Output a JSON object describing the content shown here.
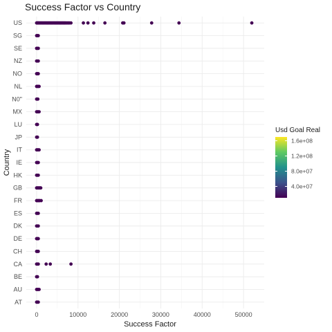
{
  "chart_data": {
    "type": "scatter",
    "title": "Success Factor vs Country",
    "xlabel": "Success Factor",
    "ylabel": "Country",
    "xlim": [
      -2500,
      55000
    ],
    "x_ticks": [
      0,
      10000,
      20000,
      30000,
      40000,
      50000
    ],
    "x_tick_labels": [
      "0",
      "10000",
      "20000",
      "30000",
      "40000",
      "50000"
    ],
    "categories": [
      "AT",
      "AU",
      "BE",
      "CA",
      "CH",
      "DE",
      "DK",
      "ES",
      "FR",
      "GB",
      "HK",
      "IE",
      "IT",
      "JP",
      "LU",
      "MX",
      "N0\"",
      "NL",
      "NO",
      "NZ",
      "SE",
      "SG",
      "US"
    ],
    "grid": true,
    "legend": {
      "title": "Usd Goal Real",
      "position": "right",
      "labels": [
        "1.6e+08",
        "1.2e+08",
        "8.0e+07",
        "4.0e+07"
      ],
      "colors": [
        "#fde725",
        "#5ec962",
        "#21918c",
        "#3b528b",
        "#440154"
      ]
    },
    "point_color": "#440154",
    "points": [
      {
        "country": "US",
        "x": 0
      },
      {
        "country": "US",
        "x": 150
      },
      {
        "country": "US",
        "x": 300
      },
      {
        "country": "US",
        "x": 450
      },
      {
        "country": "US",
        "x": 600
      },
      {
        "country": "US",
        "x": 800
      },
      {
        "country": "US",
        "x": 1000
      },
      {
        "country": "US",
        "x": 1200
      },
      {
        "country": "US",
        "x": 1400
      },
      {
        "country": "US",
        "x": 1600
      },
      {
        "country": "US",
        "x": 1800
      },
      {
        "country": "US",
        "x": 2000
      },
      {
        "country": "US",
        "x": 2200
      },
      {
        "country": "US",
        "x": 2400
      },
      {
        "country": "US",
        "x": 2600
      },
      {
        "country": "US",
        "x": 2800
      },
      {
        "country": "US",
        "x": 3000
      },
      {
        "country": "US",
        "x": 3200
      },
      {
        "country": "US",
        "x": 3400
      },
      {
        "country": "US",
        "x": 3600
      },
      {
        "country": "US",
        "x": 3800
      },
      {
        "country": "US",
        "x": 4000
      },
      {
        "country": "US",
        "x": 4200
      },
      {
        "country": "US",
        "x": 4400
      },
      {
        "country": "US",
        "x": 4600
      },
      {
        "country": "US",
        "x": 4800
      },
      {
        "country": "US",
        "x": 5000
      },
      {
        "country": "US",
        "x": 5200
      },
      {
        "country": "US",
        "x": 5400
      },
      {
        "country": "US",
        "x": 5600
      },
      {
        "country": "US",
        "x": 5800
      },
      {
        "country": "US",
        "x": 6000
      },
      {
        "country": "US",
        "x": 6200
      },
      {
        "country": "US",
        "x": 6400
      },
      {
        "country": "US",
        "x": 6600
      },
      {
        "country": "US",
        "x": 6800
      },
      {
        "country": "US",
        "x": 7000
      },
      {
        "country": "US",
        "x": 7300
      },
      {
        "country": "US",
        "x": 7600
      },
      {
        "country": "US",
        "x": 7900
      },
      {
        "country": "US",
        "x": 8300
      },
      {
        "country": "US",
        "x": 11300
      },
      {
        "country": "US",
        "x": 12400
      },
      {
        "country": "US",
        "x": 13800
      },
      {
        "country": "US",
        "x": 16500
      },
      {
        "country": "US",
        "x": 20800
      },
      {
        "country": "US",
        "x": 21100
      },
      {
        "country": "US",
        "x": 27800
      },
      {
        "country": "US",
        "x": 34400
      },
      {
        "country": "US",
        "x": 52000
      },
      {
        "country": "SG",
        "x": 0
      },
      {
        "country": "SG",
        "x": 200
      },
      {
        "country": "SG",
        "x": 400
      },
      {
        "country": "SE",
        "x": 0
      },
      {
        "country": "SE",
        "x": 200
      },
      {
        "country": "SE",
        "x": 400
      },
      {
        "country": "NZ",
        "x": 0
      },
      {
        "country": "NZ",
        "x": 200
      },
      {
        "country": "NZ",
        "x": 400
      },
      {
        "country": "NO",
        "x": 0
      },
      {
        "country": "NO",
        "x": 200
      },
      {
        "country": "NO",
        "x": 400
      },
      {
        "country": "NL",
        "x": 0
      },
      {
        "country": "NL",
        "x": 200
      },
      {
        "country": "NL",
        "x": 400
      },
      {
        "country": "NL",
        "x": 600
      },
      {
        "country": "N0\"",
        "x": 0
      },
      {
        "country": "N0\"",
        "x": 150
      },
      {
        "country": "N0\"",
        "x": 300
      },
      {
        "country": "MX",
        "x": 0
      },
      {
        "country": "MX",
        "x": 200
      },
      {
        "country": "MX",
        "x": 400
      },
      {
        "country": "MX",
        "x": 600
      },
      {
        "country": "LU",
        "x": 0
      },
      {
        "country": "LU",
        "x": 200
      },
      {
        "country": "JP",
        "x": 0
      },
      {
        "country": "JP",
        "x": 200
      },
      {
        "country": "IT",
        "x": 0
      },
      {
        "country": "IT",
        "x": 200
      },
      {
        "country": "IT",
        "x": 400
      },
      {
        "country": "IT",
        "x": 600
      },
      {
        "country": "IE",
        "x": 0
      },
      {
        "country": "IE",
        "x": 200
      },
      {
        "country": "IE",
        "x": 400
      },
      {
        "country": "HK",
        "x": 0
      },
      {
        "country": "HK",
        "x": 200
      },
      {
        "country": "HK",
        "x": 400
      },
      {
        "country": "GB",
        "x": 0
      },
      {
        "country": "GB",
        "x": 200
      },
      {
        "country": "GB",
        "x": 400
      },
      {
        "country": "GB",
        "x": 600
      },
      {
        "country": "GB",
        "x": 800
      },
      {
        "country": "GB",
        "x": 1000
      },
      {
        "country": "FR",
        "x": 0
      },
      {
        "country": "FR",
        "x": 250
      },
      {
        "country": "FR",
        "x": 500
      },
      {
        "country": "FR",
        "x": 700
      },
      {
        "country": "FR",
        "x": 1100
      },
      {
        "country": "ES",
        "x": 0
      },
      {
        "country": "ES",
        "x": 200
      },
      {
        "country": "ES",
        "x": 400
      },
      {
        "country": "DK",
        "x": 0
      },
      {
        "country": "DK",
        "x": 200
      },
      {
        "country": "DK",
        "x": 400
      },
      {
        "country": "DE",
        "x": 0
      },
      {
        "country": "DE",
        "x": 200
      },
      {
        "country": "DE",
        "x": 400
      },
      {
        "country": "CH",
        "x": 0
      },
      {
        "country": "CH",
        "x": 200
      },
      {
        "country": "CH",
        "x": 400
      },
      {
        "country": "CA",
        "x": 0
      },
      {
        "country": "CA",
        "x": 200
      },
      {
        "country": "CA",
        "x": 400
      },
      {
        "country": "CA",
        "x": 2300
      },
      {
        "country": "CA",
        "x": 3300
      },
      {
        "country": "CA",
        "x": 8300
      },
      {
        "country": "BE",
        "x": 0
      },
      {
        "country": "BE",
        "x": 200
      },
      {
        "country": "AU",
        "x": 0
      },
      {
        "country": "AU",
        "x": 200
      },
      {
        "country": "AU",
        "x": 400
      },
      {
        "country": "AU",
        "x": 600
      },
      {
        "country": "AT",
        "x": 0
      },
      {
        "country": "AT",
        "x": 200
      },
      {
        "country": "AT",
        "x": 400
      }
    ]
  }
}
